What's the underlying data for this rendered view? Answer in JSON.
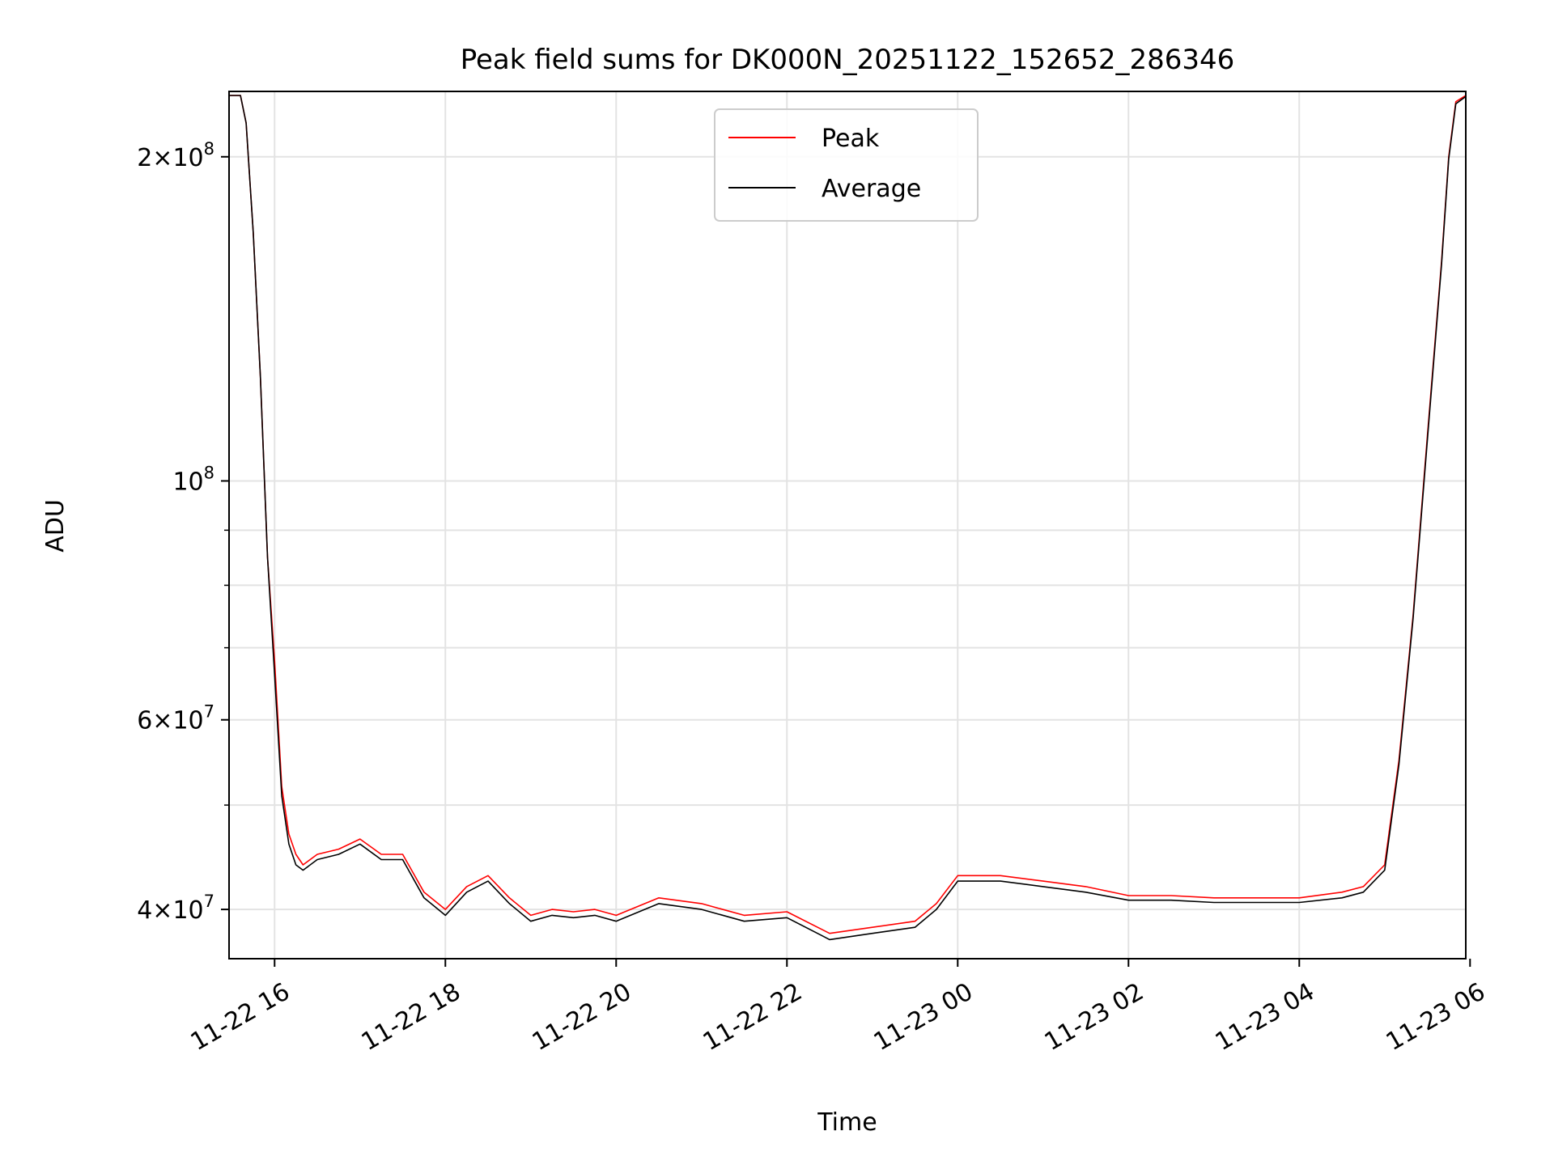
{
  "chart_data": {
    "type": "line",
    "title": "Peak field sums for DK000N_20251122_152652_286346",
    "xlabel": "Time",
    "ylabel": "ADU",
    "y_scale": "log",
    "x_range": [
      "2025-11-22 15:28",
      "2025-11-23 05:57"
    ],
    "ylim": [
      36000000,
      230000000
    ],
    "grid": true,
    "legend_placement": "upper-center",
    "x_ticks": [
      "11-22 16",
      "11-22 18",
      "11-22 20",
      "11-22 22",
      "11-23 00",
      "11-23 02",
      "11-23 04",
      "11-23 06"
    ],
    "x_tick_times": [
      "2025-11-22 16:00",
      "2025-11-22 18:00",
      "2025-11-22 20:00",
      "2025-11-22 22:00",
      "2025-11-23 00:00",
      "2025-11-23 02:00",
      "2025-11-23 04:00",
      "2025-11-23 06:00"
    ],
    "y_major_ticks": [
      {
        "value": 40000000,
        "mantissa": "4",
        "exp": "7"
      },
      {
        "value": 60000000,
        "mantissa": "6",
        "exp": "7"
      },
      {
        "value": 100000000,
        "mantissa": "",
        "exp": "8"
      },
      {
        "value": 200000000,
        "mantissa": "2",
        "exp": "8"
      }
    ],
    "y_minor_ticks": [
      50000000,
      70000000,
      80000000,
      90000000
    ],
    "x": [
      "2025-11-22 15:28",
      "2025-11-22 15:36",
      "2025-11-22 15:40",
      "2025-11-22 15:45",
      "2025-11-22 15:50",
      "2025-11-22 15:55",
      "2025-11-22 16:00",
      "2025-11-22 16:05",
      "2025-11-22 16:10",
      "2025-11-22 16:15",
      "2025-11-22 16:20",
      "2025-11-22 16:30",
      "2025-11-22 16:45",
      "2025-11-22 17:00",
      "2025-11-22 17:15",
      "2025-11-22 17:30",
      "2025-11-22 17:45",
      "2025-11-22 18:00",
      "2025-11-22 18:15",
      "2025-11-22 18:30",
      "2025-11-22 18:45",
      "2025-11-22 19:00",
      "2025-11-22 19:15",
      "2025-11-22 19:30",
      "2025-11-22 19:45",
      "2025-11-22 20:00",
      "2025-11-22 20:30",
      "2025-11-22 21:00",
      "2025-11-22 21:30",
      "2025-11-22 22:00",
      "2025-11-22 22:30",
      "2025-11-22 23:00",
      "2025-11-22 23:30",
      "2025-11-22 23:45",
      "2025-11-23 00:00",
      "2025-11-23 00:30",
      "2025-11-23 01:00",
      "2025-11-23 01:30",
      "2025-11-23 02:00",
      "2025-11-23 02:30",
      "2025-11-23 03:00",
      "2025-11-23 03:30",
      "2025-11-23 04:00",
      "2025-11-23 04:30",
      "2025-11-23 04:45",
      "2025-11-23 05:00",
      "2025-11-23 05:10",
      "2025-11-23 05:20",
      "2025-11-23 05:30",
      "2025-11-23 05:40",
      "2025-11-23 05:45",
      "2025-11-23 05:50",
      "2025-11-23 05:57"
    ],
    "series": [
      {
        "name": "Peak",
        "color": "#ff0000",
        "values": [
          228000000,
          228000000,
          215000000,
          170000000,
          125000000,
          85000000,
          68000000,
          52000000,
          47000000,
          45000000,
          44000000,
          45000000,
          45500000,
          46500000,
          45000000,
          45000000,
          41500000,
          40000000,
          42000000,
          43000000,
          41000000,
          39500000,
          40000000,
          39800000,
          40000000,
          39500000,
          41000000,
          40500000,
          39500000,
          39800000,
          38000000,
          38500000,
          39000000,
          40500000,
          43000000,
          43000000,
          42500000,
          42000000,
          41200000,
          41200000,
          41000000,
          41000000,
          41000000,
          41500000,
          42000000,
          44000000,
          55000000,
          75000000,
          110000000,
          160000000,
          200000000,
          225000000,
          228000000
        ]
      },
      {
        "name": "Average",
        "color": "#000000",
        "values": [
          228000000,
          228000000,
          215000000,
          170000000,
          125000000,
          85000000,
          66000000,
          51000000,
          46000000,
          44000000,
          43500000,
          44500000,
          45000000,
          46000000,
          44500000,
          44500000,
          41000000,
          39500000,
          41500000,
          42500000,
          40500000,
          39000000,
          39500000,
          39300000,
          39500000,
          39000000,
          40500000,
          40000000,
          39000000,
          39300000,
          37500000,
          38000000,
          38500000,
          40000000,
          42500000,
          42500000,
          42000000,
          41500000,
          40800000,
          40800000,
          40600000,
          40600000,
          40600000,
          41000000,
          41500000,
          43500000,
          54500000,
          74500000,
          109000000,
          159000000,
          199000000,
          224000000,
          227500000
        ]
      }
    ]
  }
}
